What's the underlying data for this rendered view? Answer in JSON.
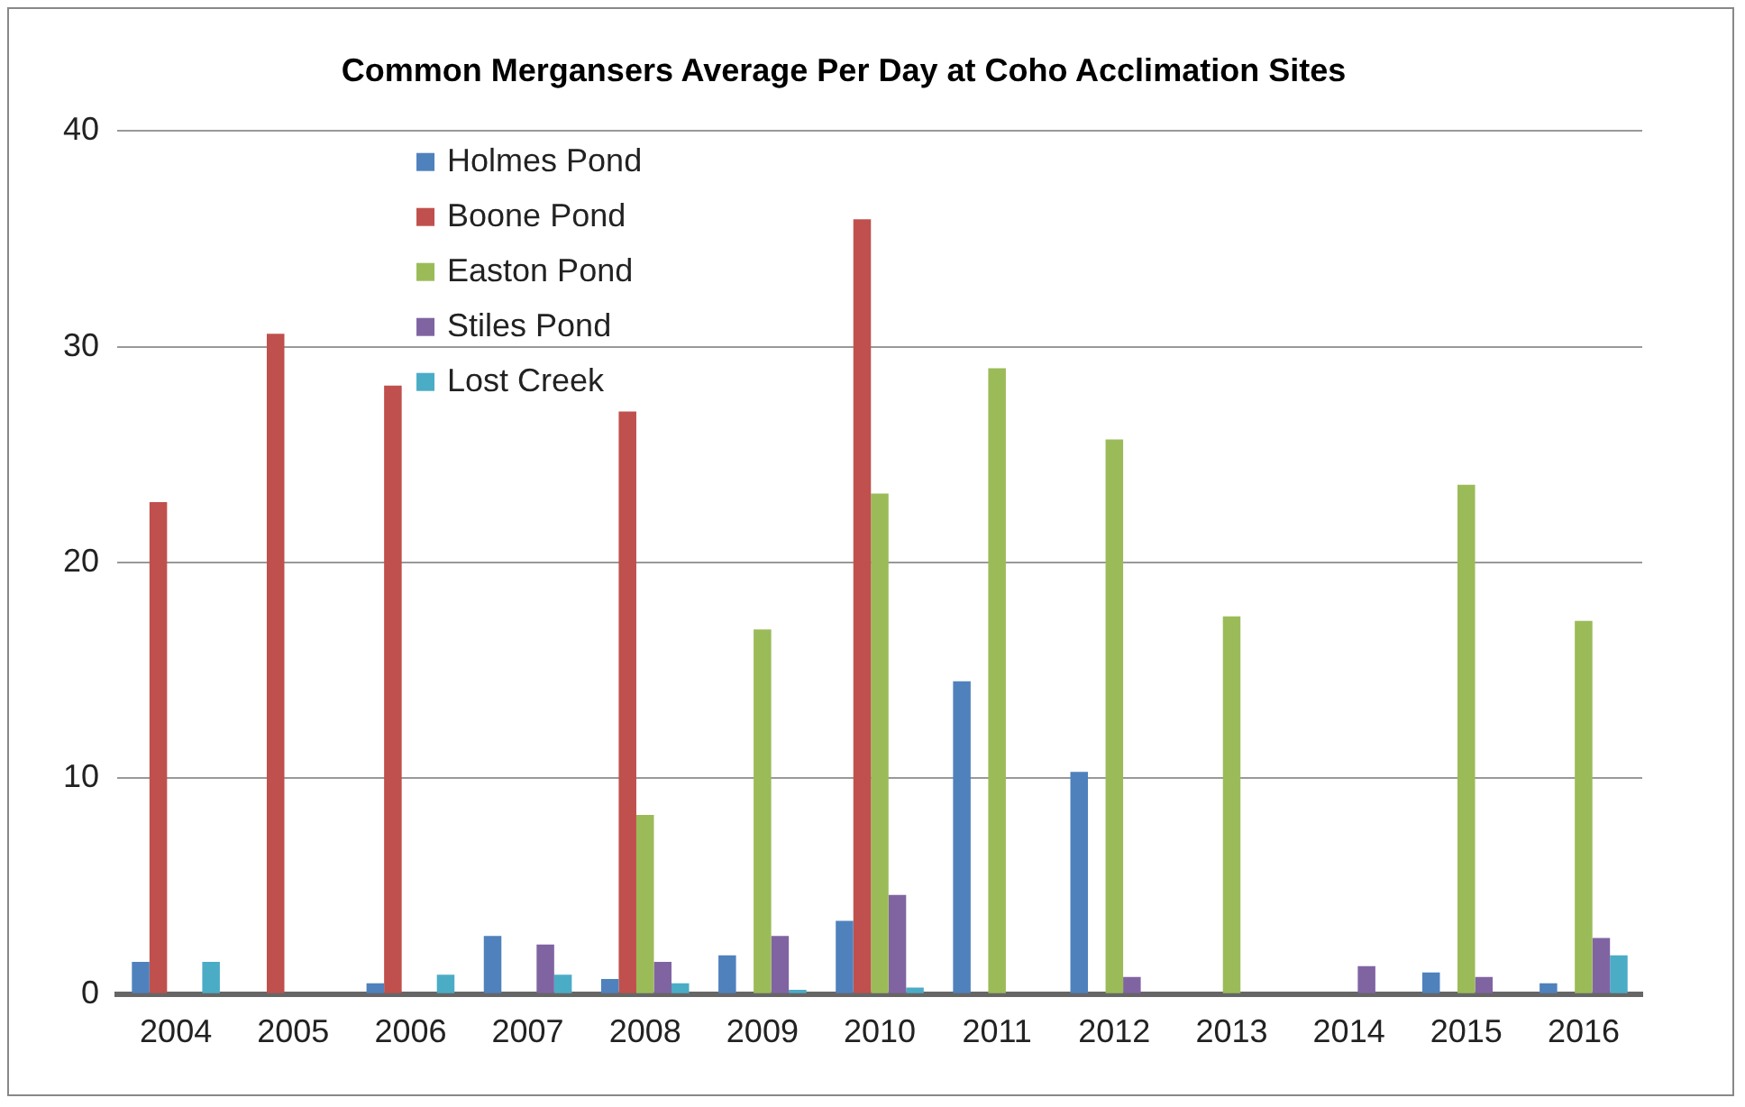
{
  "chart_data": {
    "type": "bar",
    "title": "Common Mergansers Average Per Day at Coho Acclimation Sites",
    "categories": [
      "2004",
      "2005",
      "2006",
      "2007",
      "2008",
      "2009",
      "2010",
      "2011",
      "2012",
      "2013",
      "2014",
      "2015",
      "2016"
    ],
    "series": [
      {
        "name": "Holmes Pond",
        "color": "#4f81bd",
        "values": [
          1.5,
          0,
          0.5,
          2.7,
          0.7,
          1.8,
          3.4,
          14.5,
          10.3,
          0,
          0,
          1.0,
          0.5
        ]
      },
      {
        "name": "Boone Pond",
        "color": "#c0504d",
        "values": [
          22.8,
          30.6,
          28.2,
          0,
          27.0,
          0,
          35.9,
          0,
          0,
          0,
          0,
          0,
          0
        ]
      },
      {
        "name": "Easton Pond",
        "color": "#9bbb59",
        "values": [
          0,
          0,
          0,
          0,
          8.3,
          16.9,
          23.2,
          29.0,
          25.7,
          17.5,
          0,
          23.6,
          17.3
        ]
      },
      {
        "name": "Stiles Pond",
        "color": "#8064a2",
        "values": [
          0,
          0,
          0,
          2.3,
          1.5,
          2.7,
          4.6,
          0,
          0.8,
          0,
          1.3,
          0.8,
          2.6
        ]
      },
      {
        "name": "Lost Creek",
        "color": "#4bacc6",
        "values": [
          1.5,
          0,
          0.9,
          0.9,
          0.5,
          0.2,
          0.3,
          0,
          0,
          0,
          0,
          0,
          1.8
        ]
      }
    ],
    "ylim": [
      0,
      40
    ],
    "yticks": [
      0,
      10,
      20,
      30,
      40
    ],
    "grid": "y",
    "legend": "top left"
  }
}
